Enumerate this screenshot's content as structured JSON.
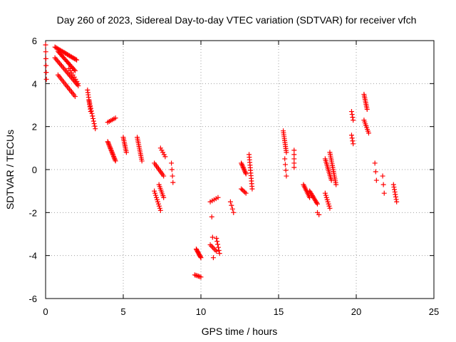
{
  "chart_data": {
    "type": "scatter",
    "title": "Day 260 of 2023, Sidereal Day-to-day VTEC variation (SDTVAR) for receiver vfch",
    "xlabel": "GPS time / hours",
    "ylabel": "SDTVAR / TECUs",
    "xlim": [
      0,
      25
    ],
    "ylim": [
      -6,
      6
    ],
    "x_ticks": [
      0,
      5,
      10,
      15,
      20,
      25
    ],
    "y_ticks": [
      -6,
      -4,
      -2,
      0,
      2,
      4,
      6
    ],
    "x_tick_labels": [
      "0",
      "5",
      "10",
      "15",
      "20",
      "25"
    ],
    "y_tick_labels": [
      "-6",
      "-4",
      "-2",
      "0",
      "2",
      "4",
      "6"
    ],
    "grid": true,
    "marker": "+",
    "color": "#ff0000",
    "segments": [
      {
        "x0": 0.0,
        "x1": 0.05,
        "y0": 5.8,
        "y1": 4.2,
        "n": 6
      },
      {
        "x0": 0.6,
        "x1": 2.0,
        "y0": 5.7,
        "y1": 5.1,
        "n": 22
      },
      {
        "x0": 0.8,
        "x1": 1.9,
        "y0": 5.5,
        "y1": 4.6,
        "n": 20
      },
      {
        "x0": 0.6,
        "x1": 2.1,
        "y0": 5.2,
        "y1": 3.9,
        "n": 22
      },
      {
        "x0": 0.8,
        "x1": 1.9,
        "y0": 4.4,
        "y1": 3.4,
        "n": 16
      },
      {
        "x0": 1.5,
        "x1": 2.1,
        "y0": 4.7,
        "y1": 4.0,
        "n": 8
      },
      {
        "x0": 2.7,
        "x1": 2.9,
        "y0": 3.7,
        "y1": 2.7,
        "n": 10
      },
      {
        "x0": 2.8,
        "x1": 3.2,
        "y0": 3.2,
        "y1": 1.9,
        "n": 12
      },
      {
        "x0": 4.0,
        "x1": 4.5,
        "y0": 2.2,
        "y1": 2.4,
        "n": 6
      },
      {
        "x0": 4.0,
        "x1": 4.5,
        "y0": 1.3,
        "y1": 0.4,
        "n": 18
      },
      {
        "x0": 5.0,
        "x1": 5.2,
        "y0": 1.5,
        "y1": 0.8,
        "n": 10
      },
      {
        "x0": 5.9,
        "x1": 6.2,
        "y0": 1.5,
        "y1": 0.4,
        "n": 14
      },
      {
        "x0": 7.0,
        "x1": 7.6,
        "y0": 0.3,
        "y1": -0.3,
        "n": 10
      },
      {
        "x0": 7.0,
        "x1": 7.4,
        "y0": -1.0,
        "y1": -1.9,
        "n": 10
      },
      {
        "x0": 7.4,
        "x1": 7.7,
        "y0": 1.0,
        "y1": 0.6,
        "n": 5
      },
      {
        "x0": 7.3,
        "x1": 7.6,
        "y0": -0.7,
        "y1": -1.3,
        "n": 8
      },
      {
        "x0": 8.1,
        "x1": 8.2,
        "y0": 0.3,
        "y1": -0.6,
        "n": 4
      },
      {
        "x0": 9.7,
        "x1": 10.0,
        "y0": -3.7,
        "y1": -4.1,
        "n": 10
      },
      {
        "x0": 9.6,
        "x1": 10.0,
        "y0": -4.9,
        "y1": -5.0,
        "n": 6
      },
      {
        "x0": 10.6,
        "x1": 11.0,
        "y0": -3.5,
        "y1": -3.8,
        "n": 6
      },
      {
        "x0": 10.6,
        "x1": 11.1,
        "y0": -1.5,
        "y1": -1.3,
        "n": 5
      },
      {
        "x0": 10.7,
        "x1": 10.8,
        "y0": -2.2,
        "y1": -4.1,
        "n": 3
      },
      {
        "x0": 11.0,
        "x1": 11.2,
        "y0": -3.2,
        "y1": -3.9,
        "n": 6
      },
      {
        "x0": 11.9,
        "x1": 12.1,
        "y0": -1.5,
        "y1": -2.0,
        "n": 4
      },
      {
        "x0": 12.6,
        "x1": 12.9,
        "y0": 0.3,
        "y1": -0.2,
        "n": 10
      },
      {
        "x0": 12.6,
        "x1": 12.9,
        "y0": -0.9,
        "y1": -1.1,
        "n": 5
      },
      {
        "x0": 13.1,
        "x1": 13.3,
        "y0": 0.7,
        "y1": -0.9,
        "n": 14
      },
      {
        "x0": 15.3,
        "x1": 15.5,
        "y0": 1.8,
        "y1": 0.8,
        "n": 12
      },
      {
        "x0": 15.4,
        "x1": 15.5,
        "y0": 0.5,
        "y1": -0.3,
        "n": 4
      },
      {
        "x0": 16.0,
        "x1": 16.0,
        "y0": 0.9,
        "y1": 0.1,
        "n": 5
      },
      {
        "x0": 16.6,
        "x1": 17.0,
        "y0": -0.7,
        "y1": -1.3,
        "n": 10
      },
      {
        "x0": 17.0,
        "x1": 17.5,
        "y0": -1.0,
        "y1": -1.6,
        "n": 12
      },
      {
        "x0": 17.5,
        "x1": 17.6,
        "y0": -2.0,
        "y1": -2.1,
        "n": 2
      },
      {
        "x0": 18.0,
        "x1": 18.3,
        "y0": -1.1,
        "y1": -1.8,
        "n": 8
      },
      {
        "x0": 18.0,
        "x1": 18.4,
        "y0": 0.5,
        "y1": -0.5,
        "n": 14
      },
      {
        "x0": 18.3,
        "x1": 18.7,
        "y0": 0.8,
        "y1": -0.7,
        "n": 18
      },
      {
        "x0": 19.7,
        "x1": 19.8,
        "y0": 2.7,
        "y1": 2.3,
        "n": 4
      },
      {
        "x0": 19.7,
        "x1": 19.8,
        "y0": 1.6,
        "y1": 1.2,
        "n": 4
      },
      {
        "x0": 20.5,
        "x1": 20.7,
        "y0": 3.5,
        "y1": 2.8,
        "n": 10
      },
      {
        "x0": 20.5,
        "x1": 20.8,
        "y0": 2.3,
        "y1": 1.7,
        "n": 8
      },
      {
        "x0": 21.2,
        "x1": 21.3,
        "y0": 0.3,
        "y1": -0.5,
        "n": 3
      },
      {
        "x0": 21.7,
        "x1": 21.8,
        "y0": -0.3,
        "y1": -1.1,
        "n": 3
      },
      {
        "x0": 22.4,
        "x1": 22.6,
        "y0": -0.7,
        "y1": -1.5,
        "n": 8
      }
    ]
  }
}
